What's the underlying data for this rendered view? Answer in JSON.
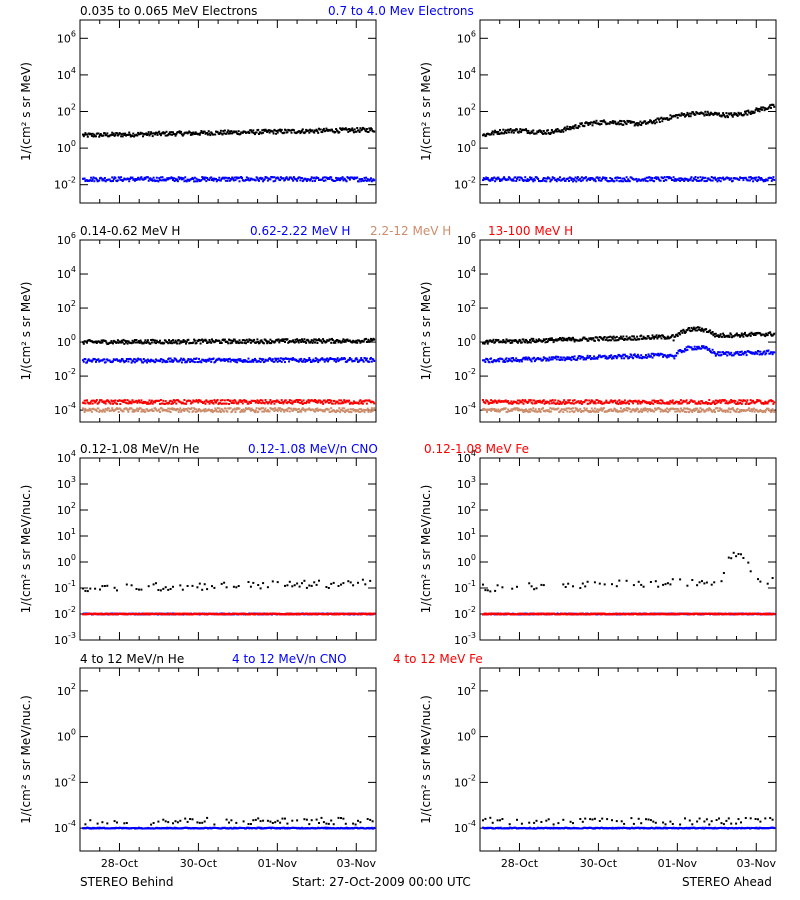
{
  "footer": {
    "left": "STEREO Behind",
    "center": "Start: 27-Oct-2009 00:00 UTC",
    "right": "STEREO Ahead"
  },
  "x_axis": {
    "ticks": [
      "28-Oct",
      "30-Oct",
      "01-Nov",
      "03-Nov"
    ],
    "tick_days": [
      1,
      3,
      5,
      7
    ],
    "range_days": [
      0,
      7.5
    ]
  },
  "chart_data": [
    {
      "type": "scatter",
      "row": 0,
      "ylabel": "1/(cm² s sr MeV)",
      "y_scale": "log",
      "ylim": [
        0.001,
        10000000
      ],
      "ytick_exponents": [
        -2,
        0,
        2,
        4,
        6
      ],
      "titles": [
        {
          "text": "0.035 to 0.065 MeV Electrons",
          "color": "#000000"
        },
        {
          "text": "0.7 to 4.0 Mev Electrons",
          "color": "#0000ff"
        }
      ],
      "panels": [
        {
          "side": "STEREO Behind",
          "series": [
            {
              "color": "#000000",
              "start": 5,
              "end": 10,
              "shape": "flat"
            },
            {
              "color": "#0000ff",
              "start": 0.02,
              "end": 0.02,
              "shape": "flat"
            }
          ]
        },
        {
          "side": "STEREO Ahead",
          "series": [
            {
              "color": "#000000",
              "start": 5,
              "end": 150,
              "shape": "rising"
            },
            {
              "color": "#0000ff",
              "start": 0.02,
              "end": 0.02,
              "shape": "flat"
            }
          ]
        }
      ]
    },
    {
      "type": "scatter",
      "row": 1,
      "ylabel": "1/(cm² s sr MeV)",
      "y_scale": "log",
      "ylim": [
        2e-05,
        1000000
      ],
      "ytick_exponents": [
        -4,
        -2,
        0,
        2,
        4,
        6
      ],
      "titles": [
        {
          "text": "0.14-0.62 MeV H",
          "color": "#000000"
        },
        {
          "text": "0.62-2.22 MeV H",
          "color": "#0000ff"
        },
        {
          "text": "2.2-12 MeV H",
          "color": "#cd8d6b"
        },
        {
          "text": "13-100 MeV H",
          "color": "#ff0000"
        }
      ],
      "panels": [
        {
          "side": "STEREO Behind",
          "series": [
            {
              "color": "#000000",
              "start": 1.0,
              "end": 1.2,
              "shape": "flat"
            },
            {
              "color": "#0000ff",
              "start": 0.08,
              "end": 0.09,
              "shape": "flat"
            },
            {
              "color": "#ff0000",
              "start": 0.0003,
              "end": 0.0003,
              "shape": "flat"
            },
            {
              "color": "#cd8d6b",
              "start": 0.0001,
              "end": 0.0001,
              "shape": "flat"
            }
          ]
        },
        {
          "side": "STEREO Ahead",
          "series": [
            {
              "color": "#000000",
              "start": 1.0,
              "end": 3.0,
              "shape": "bumpy"
            },
            {
              "color": "#0000ff",
              "start": 0.08,
              "end": 0.25,
              "shape": "bumpy"
            },
            {
              "color": "#ff0000",
              "start": 0.0003,
              "end": 0.0003,
              "shape": "flat"
            },
            {
              "color": "#cd8d6b",
              "start": 0.0001,
              "end": 0.0001,
              "shape": "flat"
            }
          ]
        }
      ]
    },
    {
      "type": "scatter",
      "row": 2,
      "ylabel": "1/(cm² s sr MeV/nuc.)",
      "y_scale": "log",
      "ylim": [
        0.001,
        10000
      ],
      "ytick_exponents": [
        -3,
        -2,
        -1,
        0,
        1,
        2,
        3,
        4
      ],
      "titles": [
        {
          "text": "0.12-1.08 MeV/n He",
          "color": "#000000"
        },
        {
          "text": "0.12-1.08 MeV/n CNO",
          "color": "#0000ff"
        },
        {
          "text": "0.12-1.08 MeV Fe",
          "color": "#ff0000"
        }
      ],
      "panels": [
        {
          "side": "STEREO Behind",
          "series": [
            {
              "color": "#000000",
              "start": 0.1,
              "end": 0.15,
              "shape": "sparse"
            },
            {
              "color": "#0000ff",
              "start": 0.01,
              "end": 0.01,
              "shape": "line"
            },
            {
              "color": "#ff0000",
              "start": 0.01,
              "end": 0.01,
              "shape": "line"
            }
          ]
        },
        {
          "side": "STEREO Ahead",
          "series": [
            {
              "color": "#000000",
              "start": 0.1,
              "end": 0.2,
              "shape": "sparse_peak"
            },
            {
              "color": "#0000ff",
              "start": 0.01,
              "end": 0.01,
              "shape": "line"
            },
            {
              "color": "#ff0000",
              "start": 0.01,
              "end": 0.01,
              "shape": "line"
            }
          ]
        }
      ]
    },
    {
      "type": "scatter",
      "row": 3,
      "ylabel": "1/(cm² s sr MeV/nuc.)",
      "y_scale": "log",
      "ylim": [
        1e-05,
        1000
      ],
      "ytick_exponents": [
        -4,
        -2,
        0,
        2
      ],
      "titles": [
        {
          "text": "4 to 12 MeV/n He",
          "color": "#000000"
        },
        {
          "text": "4 to 12 MeV/n CNO",
          "color": "#0000ff"
        },
        {
          "text": "4 to 12 MeV Fe",
          "color": "#ff0000"
        }
      ],
      "panels": [
        {
          "side": "STEREO Behind",
          "series": [
            {
              "color": "#000000",
              "start": 0.0002,
              "end": 0.0002,
              "shape": "sparse"
            },
            {
              "color": "#0000ff",
              "start": 0.0001,
              "end": 0.0001,
              "shape": "line"
            }
          ]
        },
        {
          "side": "STEREO Ahead",
          "series": [
            {
              "color": "#000000",
              "start": 0.0002,
              "end": 0.0002,
              "shape": "sparse"
            },
            {
              "color": "#0000ff",
              "start": 0.0001,
              "end": 0.0001,
              "shape": "line"
            }
          ]
        }
      ]
    }
  ]
}
